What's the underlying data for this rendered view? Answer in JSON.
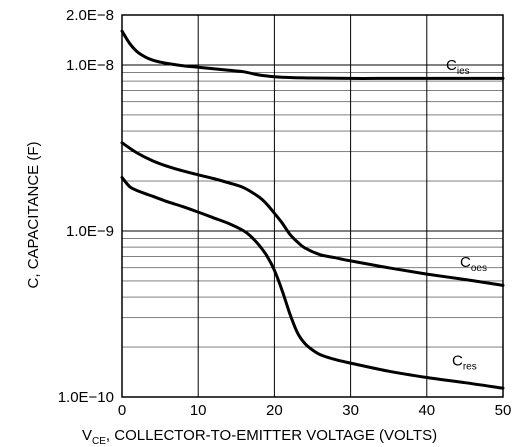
{
  "chart_data": {
    "type": "line",
    "xlabel_sub": "CE",
    "xlabel_pre": "V",
    "xlabel_rest": ", COLLECTOR-TO-EMITTER VOLTAGE (VOLTS)",
    "ylabel": "C, CAPACITANCE (F)",
    "xlim": [
      0,
      50
    ],
    "ylim": [
      1e-10,
      2e-08
    ],
    "yscale": "log",
    "grid": true,
    "x_ticks": [
      0,
      10,
      20,
      30,
      40,
      50
    ],
    "x_tick_labels": [
      "0",
      "10",
      "20",
      "30",
      "40",
      "50"
    ],
    "y_ticks": [
      1e-10,
      1e-09,
      1e-08,
      2e-08
    ],
    "y_tick_labels": [
      "1.0E−10",
      "1.0E−9",
      "1.0E−8",
      "2.0E−8"
    ],
    "series": [
      {
        "name": "Cies",
        "label_main": "C",
        "label_sub": "ies",
        "x": [
          0,
          1,
          2,
          3,
          4,
          5,
          6,
          8,
          10,
          12,
          14,
          16,
          18,
          20,
          22,
          25,
          30,
          35,
          40,
          45,
          50
        ],
        "y": [
          1.6e-08,
          1.35e-08,
          1.2e-08,
          1.12e-08,
          1.07e-08,
          1.04e-08,
          1.02e-08,
          9.9e-09,
          9.7e-09,
          9.5e-09,
          9.3e-09,
          9.1e-09,
          8.7e-09,
          8.5e-09,
          8.4e-09,
          8.35e-09,
          8.3e-09,
          8.3e-09,
          8.3e-09,
          8.3e-09,
          8.3e-09
        ]
      },
      {
        "name": "Coes",
        "label_main": "C",
        "label_sub": "oes",
        "x": [
          0,
          2,
          4,
          6,
          8,
          10,
          12,
          14,
          16,
          18,
          19,
          20,
          21,
          22,
          23,
          24,
          26,
          28,
          30,
          35,
          40,
          45,
          50
        ],
        "y": [
          3.4e-09,
          2.95e-09,
          2.65e-09,
          2.45e-09,
          2.3e-09,
          2.18e-09,
          2.07e-09,
          1.95e-09,
          1.82e-09,
          1.6e-09,
          1.45e-09,
          1.28e-09,
          1.12e-09,
          9.6e-10,
          8.6e-10,
          7.9e-10,
          7.2e-10,
          6.9e-10,
          6.6e-10,
          6e-10,
          5.5e-10,
          5.1e-10,
          4.7e-10
        ]
      },
      {
        "name": "Cres",
        "label_main": "C",
        "label_sub": "res",
        "x": [
          0,
          1,
          2,
          4,
          6,
          8,
          10,
          12,
          14,
          16,
          17,
          18,
          19,
          20,
          21,
          22,
          23,
          24,
          25,
          26,
          28,
          30,
          35,
          40,
          45,
          50
        ],
        "y": [
          2.1e-09,
          1.85e-09,
          1.75e-09,
          1.62e-09,
          1.5e-09,
          1.4e-09,
          1.3e-09,
          1.2e-09,
          1.11e-09,
          1e-09,
          9.2e-10,
          8.2e-10,
          7.1e-10,
          5.8e-10,
          4.4e-10,
          3.2e-10,
          2.45e-10,
          2.1e-10,
          1.92e-10,
          1.8e-10,
          1.68e-10,
          1.6e-10,
          1.43e-10,
          1.31e-10,
          1.22e-10,
          1.13e-10
        ]
      }
    ]
  }
}
